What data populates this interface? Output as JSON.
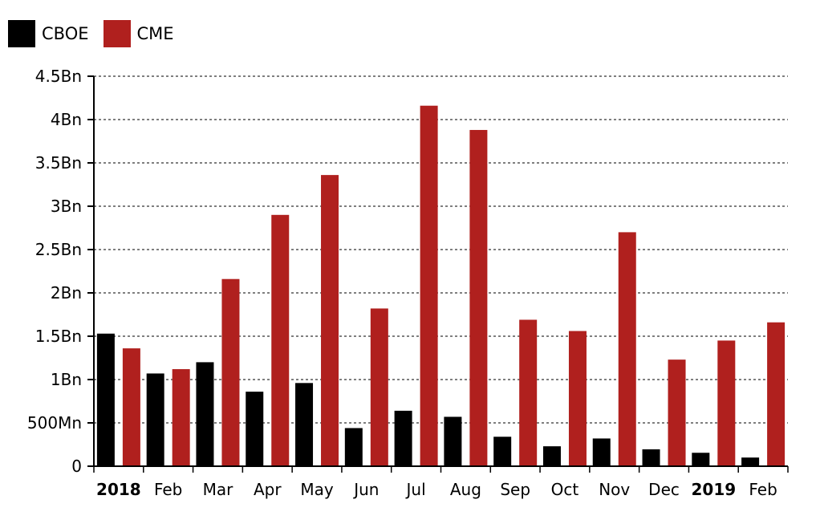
{
  "chart_data": {
    "type": "bar",
    "title": "",
    "xlabel": "",
    "ylabel": "",
    "ylim": [
      0,
      4500000000
    ],
    "yticks": [
      0,
      500000000,
      1000000000,
      1500000000,
      2000000000,
      2500000000,
      3000000000,
      3500000000,
      4000000000,
      4500000000
    ],
    "ytick_labels": [
      "0",
      "500Mn",
      "1Bn",
      "1.5Bn",
      "2Bn",
      "2.5Bn",
      "3Bn",
      "3.5Bn",
      "4Bn",
      "4.5Bn"
    ],
    "grid": "horizontal-dotted",
    "legend_position": "top-left",
    "categories": [
      "2018",
      "Feb",
      "Mar",
      "Apr",
      "May",
      "Jun",
      "Jul",
      "Aug",
      "Sep",
      "Oct",
      "Nov",
      "Dec",
      "2019",
      "Feb"
    ],
    "bold_categories": [
      "2018",
      "2019"
    ],
    "series": [
      {
        "name": "CBOE",
        "color": "#000000",
        "values": [
          1530000000,
          1070000000,
          1200000000,
          860000000,
          960000000,
          440000000,
          640000000,
          570000000,
          340000000,
          230000000,
          320000000,
          195000000,
          155000000,
          100000000
        ]
      },
      {
        "name": "CME",
        "color": "#b0201e",
        "values": [
          1360000000,
          1120000000,
          2160000000,
          2900000000,
          3360000000,
          1820000000,
          4160000000,
          3880000000,
          1690000000,
          1560000000,
          2700000000,
          1230000000,
          1450000000,
          1660000000
        ]
      }
    ]
  }
}
